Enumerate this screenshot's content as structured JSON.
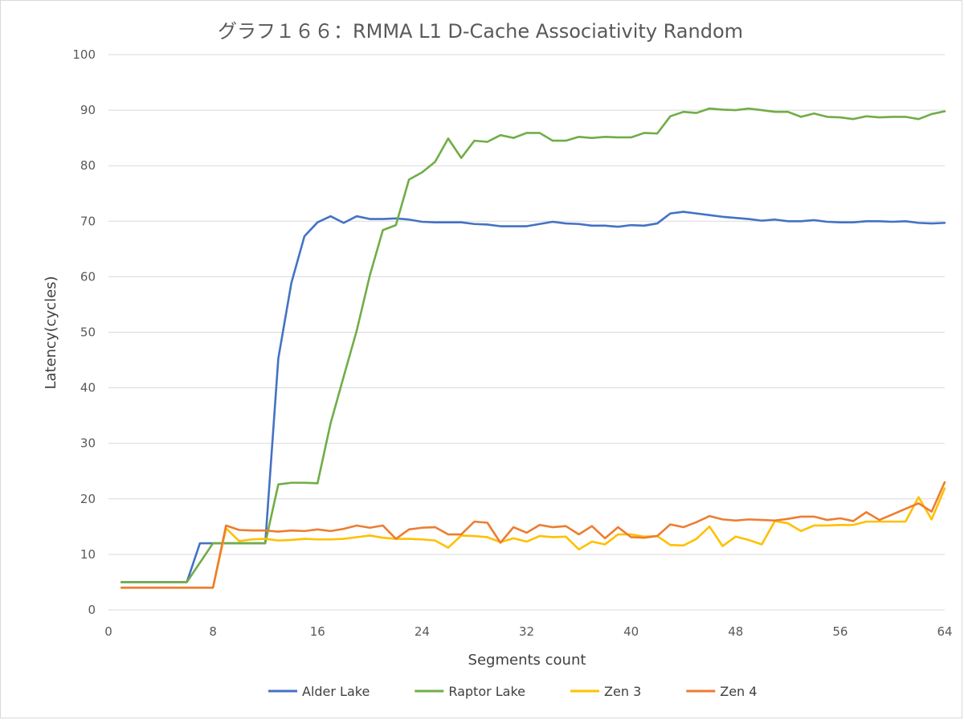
{
  "chart_data": {
    "type": "line",
    "title": "グラフ１６６：RMMA L1 D-Cache Associativity Random",
    "xlabel": "Segments count",
    "ylabel": "Latency(cycles)",
    "xlim": [
      0,
      64
    ],
    "ylim": [
      0,
      100
    ],
    "xticks": [
      0,
      8,
      16,
      24,
      32,
      40,
      48,
      56,
      64
    ],
    "yticks": [
      0,
      10,
      20,
      30,
      40,
      50,
      60,
      70,
      80,
      90,
      100
    ],
    "grid": "horizontal",
    "legend_position": "bottom",
    "x": [
      1,
      2,
      3,
      4,
      5,
      6,
      7,
      8,
      9,
      10,
      11,
      12,
      13,
      14,
      15,
      16,
      17,
      18,
      19,
      20,
      21,
      22,
      23,
      24,
      25,
      26,
      27,
      28,
      29,
      30,
      31,
      32,
      33,
      34,
      35,
      36,
      37,
      38,
      39,
      40,
      41,
      42,
      43,
      44,
      45,
      46,
      47,
      48,
      49,
      50,
      51,
      52,
      53,
      54,
      55,
      56,
      57,
      58,
      59,
      60,
      61,
      62,
      63,
      64
    ],
    "series": [
      {
        "name": "Alder Lake",
        "color": "#4472c4",
        "values": [
          5,
          5,
          5,
          5,
          5,
          5,
          12,
          12,
          12,
          12,
          12,
          12,
          45.3,
          58.9,
          67.3,
          69.8,
          70.9,
          69.7,
          70.9,
          70.4,
          70.4,
          70.5,
          70.3,
          69.9,
          69.8,
          69.8,
          69.8,
          69.5,
          69.4,
          69.1,
          69.1,
          69.1,
          69.5,
          69.9,
          69.6,
          69.5,
          69.2,
          69.2,
          69.0,
          69.3,
          69.2,
          69.6,
          71.4,
          71.7,
          71.4,
          71.1,
          70.8,
          70.6,
          70.4,
          70.1,
          70.3,
          70.0,
          70.0,
          70.2,
          69.9,
          69.8,
          69.8,
          70.0,
          70.0,
          69.9,
          70.0,
          69.7,
          69.6,
          69.7
        ]
      },
      {
        "name": "Raptor Lake",
        "color": "#70ad47",
        "values": [
          5,
          5,
          5,
          5,
          5,
          5,
          8.5,
          12,
          12,
          12,
          12,
          12,
          22.6,
          22.9,
          22.9,
          22.8,
          33.6,
          42.0,
          50.3,
          60.2,
          68.4,
          69.3,
          77.5,
          78.8,
          80.7,
          84.9,
          81.4,
          84.5,
          84.3,
          85.5,
          85.0,
          85.9,
          85.9,
          84.5,
          84.5,
          85.2,
          85.0,
          85.2,
          85.1,
          85.1,
          85.9,
          85.8,
          88.9,
          89.7,
          89.5,
          90.3,
          90.1,
          90.0,
          90.3,
          90.0,
          89.7,
          89.7,
          88.8,
          89.4,
          88.8,
          88.7,
          88.4,
          88.9,
          88.7,
          88.8,
          88.8,
          88.4,
          89.3,
          89.8
        ]
      },
      {
        "name": "Zen 3",
        "color": "#ffc000",
        "values": [
          4,
          4,
          4,
          4,
          4,
          4,
          4,
          4,
          14.7,
          12.4,
          12.7,
          12.8,
          12.5,
          12.6,
          12.8,
          12.7,
          12.7,
          12.8,
          13.1,
          13.4,
          13.0,
          12.8,
          12.8,
          12.7,
          12.5,
          11.2,
          13.4,
          13.3,
          13.1,
          12.2,
          12.9,
          12.3,
          13.3,
          13.1,
          13.2,
          10.9,
          12.3,
          11.8,
          13.6,
          13.6,
          13.2,
          13.3,
          11.7,
          11.6,
          12.8,
          15.0,
          11.5,
          13.2,
          12.6,
          11.8,
          16.0,
          15.6,
          14.2,
          15.2,
          15.2,
          15.3,
          15.3,
          15.9,
          15.9,
          15.9,
          15.9,
          20.3,
          16.3,
          21.9
        ]
      },
      {
        "name": "Zen 4",
        "color": "#ed7d31",
        "values": [
          4,
          4,
          4,
          4,
          4,
          4,
          4,
          4,
          15.2,
          14.4,
          14.3,
          14.3,
          14.1,
          14.3,
          14.2,
          14.5,
          14.2,
          14.6,
          15.2,
          14.8,
          15.2,
          12.8,
          14.5,
          14.8,
          14.9,
          13.6,
          13.6,
          15.9,
          15.7,
          12.1,
          14.9,
          13.9,
          15.3,
          14.9,
          15.1,
          13.6,
          15.1,
          12.9,
          14.9,
          13.1,
          13.0,
          13.3,
          15.4,
          14.9,
          15.8,
          16.9,
          16.3,
          16.1,
          16.3,
          16.2,
          16.1,
          16.4,
          16.8,
          16.8,
          16.2,
          16.5,
          16.0,
          17.6,
          16.2,
          17.2,
          18.2,
          19.2,
          17.7,
          23.0
        ]
      }
    ]
  }
}
